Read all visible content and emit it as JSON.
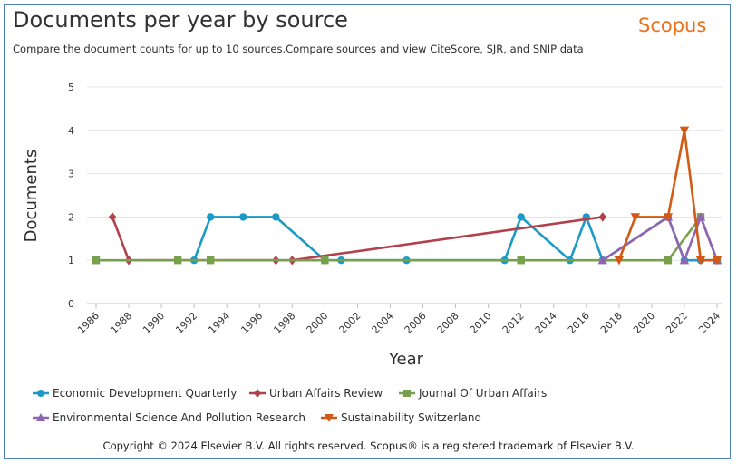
{
  "header": {
    "title": "Documents per year by source",
    "brand": "Scopus",
    "subtitle": "Compare the document counts for up to 10 sources.Compare sources and view CiteScore, SJR, and SNIP data"
  },
  "footer": {
    "copyright": "Copyright © 2024 Elsevier B.V. All rights reserved. Scopus® is a registered trademark of Elsevier B.V."
  },
  "chart_data": {
    "type": "line",
    "title": "Documents per year by source",
    "xlabel": "Year",
    "ylabel": "Documents",
    "xlim": [
      1986,
      2024
    ],
    "ylim": [
      0,
      5
    ],
    "xticks": [
      1986,
      1988,
      1990,
      1992,
      1994,
      1996,
      1998,
      2000,
      2002,
      2004,
      2006,
      2008,
      2010,
      2012,
      2014,
      2016,
      2018,
      2020,
      2022,
      2024
    ],
    "yticks": [
      0,
      1,
      2,
      3,
      4,
      5
    ],
    "grid": true,
    "legend": "bottom",
    "series": [
      {
        "name": "Economic Development Quarterly",
        "color": "#1a9bc7",
        "marker": "circle",
        "points": [
          [
            1992,
            1
          ],
          [
            1993,
            2
          ],
          [
            1995,
            2
          ],
          [
            1997,
            2
          ],
          [
            2000,
            1
          ],
          [
            2001,
            1
          ],
          [
            2005,
            1
          ],
          [
            2011,
            1
          ],
          [
            2012,
            2
          ],
          [
            2015,
            1
          ],
          [
            2016,
            2
          ],
          [
            2017,
            1
          ],
          [
            2021,
            2
          ],
          [
            2022,
            1
          ],
          [
            2023,
            1
          ],
          [
            2024,
            1
          ]
        ]
      },
      {
        "name": "Urban Affairs Review",
        "color": "#b2414c",
        "marker": "diamond",
        "points": [
          [
            1987,
            2
          ],
          [
            1988,
            1
          ],
          [
            1997,
            1
          ],
          [
            1998,
            1
          ],
          [
            2017,
            2
          ]
        ]
      },
      {
        "name": "Journal Of Urban Affairs",
        "color": "#76a04b",
        "marker": "square",
        "points": [
          [
            1986,
            1
          ],
          [
            1991,
            1
          ],
          [
            1993,
            1
          ],
          [
            2000,
            1
          ],
          [
            2012,
            1
          ],
          [
            2021,
            1
          ],
          [
            2023,
            2
          ],
          [
            2024,
            1
          ]
        ]
      },
      {
        "name": "Environmental Science And Pollution Research",
        "color": "#8f64b0",
        "marker": "triangle-up",
        "points": [
          [
            2017,
            1
          ],
          [
            2021,
            2
          ],
          [
            2022,
            1
          ],
          [
            2023,
            2
          ],
          [
            2024,
            1
          ]
        ]
      },
      {
        "name": "Sustainability Switzerland",
        "color": "#d35a16",
        "marker": "triangle-down",
        "points": [
          [
            2018,
            1
          ],
          [
            2019,
            2
          ],
          [
            2021,
            2
          ],
          [
            2022,
            4
          ],
          [
            2023,
            1
          ],
          [
            2024,
            1
          ]
        ]
      }
    ]
  }
}
